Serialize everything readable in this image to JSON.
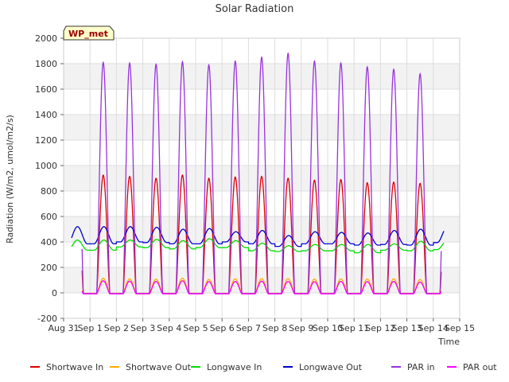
{
  "chart_data": {
    "type": "line",
    "title": "Solar Radiation",
    "xlabel": "Time",
    "ylabel": "Radiation (W/m2, umol/m2/s)",
    "ylim": [
      -200,
      2000
    ],
    "xlim": [
      0,
      15
    ],
    "yticks": [
      -200,
      0,
      200,
      400,
      600,
      800,
      1000,
      1200,
      1400,
      1600,
      1800,
      2000
    ],
    "xticks": [
      {
        "x": 0,
        "label": "Aug 31"
      },
      {
        "x": 1,
        "label": "Sep 1"
      },
      {
        "x": 2,
        "label": "Sep 2"
      },
      {
        "x": 3,
        "label": "Sep 3"
      },
      {
        "x": 4,
        "label": "Sep 4"
      },
      {
        "x": 5,
        "label": "Sep 5"
      },
      {
        "x": 6,
        "label": "Sep 6"
      },
      {
        "x": 7,
        "label": "Sep 7"
      },
      {
        "x": 8,
        "label": "Sep 8"
      },
      {
        "x": 9,
        "label": "Sep 9"
      },
      {
        "x": 10,
        "label": "Sep 10"
      },
      {
        "x": 11,
        "label": "Sep 11"
      },
      {
        "x": 12,
        "label": "Sep 12"
      },
      {
        "x": 13,
        "label": "Sep 13"
      },
      {
        "x": 14,
        "label": "Sep 14"
      },
      {
        "x": 15,
        "label": "Sep 15"
      }
    ],
    "grid": true,
    "banded_background": true,
    "annotation": "WP_met",
    "legend_position": "bottom",
    "days": [
      "Sep 1",
      "Sep 2",
      "Sep 3",
      "Sep 4",
      "Sep 5",
      "Sep 6",
      "Sep 7",
      "Sep 8",
      "Sep 9",
      "Sep 10",
      "Sep 11",
      "Sep 12",
      "Sep 13",
      "Sep 14"
    ],
    "series": [
      {
        "name": "Shortwave In",
        "color": "#dd0000",
        "kind": "peak",
        "peaks": [
          925,
          915,
          900,
          925,
          900,
          910,
          915,
          900,
          885,
          890,
          865,
          870,
          860,
          870
        ],
        "base": -5,
        "start": 0.7,
        "end": 14.3
      },
      {
        "name": "Shortwave Out",
        "color": "#ffaa00",
        "kind": "peak",
        "peaks": [
          115,
          110,
          108,
          115,
          105,
          110,
          112,
          112,
          108,
          110,
          108,
          110,
          105,
          108
        ],
        "base": -3,
        "start": 0.7,
        "end": 14.3
      },
      {
        "name": "Longwave In",
        "color": "#00dd00",
        "kind": "wave",
        "peaks": [
          415,
          415,
          420,
          410,
          425,
          410,
          390,
          370,
          380,
          380,
          380,
          385,
          405,
          410
        ],
        "troughs": [
          335,
          360,
          355,
          345,
          355,
          355,
          330,
          325,
          330,
          330,
          315,
          335,
          330,
          340
        ],
        "start": 0.3,
        "end": 14.4
      },
      {
        "name": "Longwave Out",
        "color": "#0000cc",
        "kind": "wave",
        "peaks": [
          520,
          520,
          515,
          500,
          505,
          480,
          490,
          450,
          480,
          475,
          470,
          490,
          500,
          515
        ],
        "troughs": [
          385,
          400,
          395,
          385,
          385,
          400,
          385,
          365,
          385,
          385,
          375,
          380,
          375,
          395
        ],
        "start": 0.3,
        "end": 14.4
      },
      {
        "name": "PAR in",
        "color": "#9933dd",
        "kind": "peak",
        "peaks": [
          1810,
          1805,
          1795,
          1815,
          1790,
          1820,
          1850,
          1880,
          1820,
          1805,
          1775,
          1755,
          1720,
          1725
        ],
        "base": -5,
        "start": 0.7,
        "end": 14.3
      },
      {
        "name": "PAR out",
        "color": "#ff00ff",
        "kind": "peak",
        "peaks": [
          95,
          92,
          90,
          95,
          88,
          90,
          92,
          90,
          88,
          90,
          88,
          90,
          85,
          88
        ],
        "base": -8,
        "start": 0.7,
        "end": 14.3
      }
    ]
  }
}
